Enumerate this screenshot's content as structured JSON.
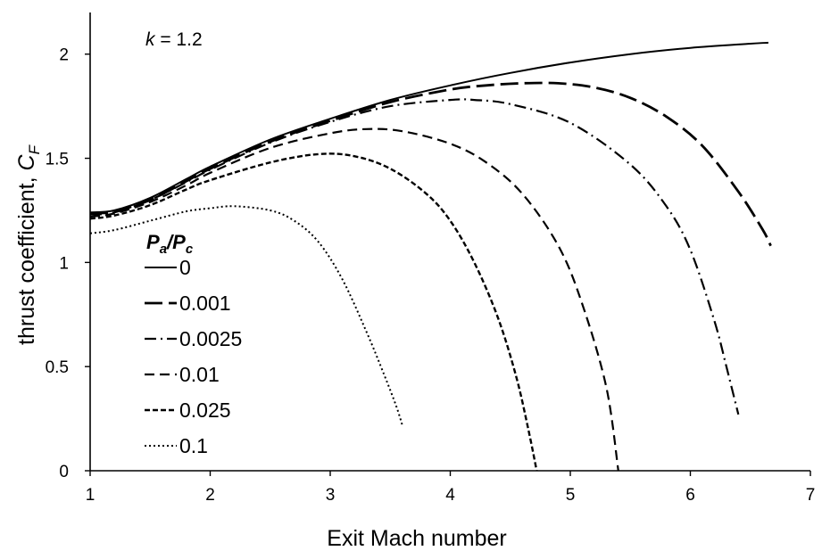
{
  "chart_data": {
    "type": "line",
    "title": "",
    "xlabel": "Exit Mach number",
    "ylabel_main": "thrust coefficient, ",
    "ylabel_symbol": "C",
    "ylabel_subscript": "F",
    "xlim": [
      1,
      7
    ],
    "ylim": [
      0,
      2.2
    ],
    "x_ticks": [
      1,
      2,
      3,
      4,
      5,
      6,
      7
    ],
    "y_ticks": [
      0,
      0.5,
      1,
      1.5,
      2
    ],
    "x_tick_labels": [
      "1",
      "2",
      "3",
      "4",
      "5",
      "6",
      "7"
    ],
    "y_tick_labels": [
      "0",
      "0.5",
      "1",
      "1.5",
      "2"
    ],
    "grid": false,
    "annotation": {
      "var": "k",
      "rest": " = 1.2"
    },
    "legend": {
      "title_p": "P",
      "title_sub_a": "a",
      "title_slash": "/",
      "title_sub_c": "c",
      "placement": "left-center"
    },
    "color": "#000000",
    "series": [
      {
        "name": "0",
        "style": "solid-thin",
        "x": [
          1.0,
          1.2,
          1.5,
          1.8,
          2.0,
          2.5,
          3.0,
          3.5,
          4.0,
          4.5,
          5.0,
          5.5,
          6.0,
          6.5,
          6.65
        ],
        "y": [
          1.24,
          1.25,
          1.31,
          1.4,
          1.46,
          1.59,
          1.69,
          1.78,
          1.85,
          1.91,
          1.96,
          2.0,
          2.03,
          2.05,
          2.055
        ]
      },
      {
        "name": "0.001",
        "style": "long-dash",
        "x": [
          1.0,
          1.2,
          1.5,
          1.8,
          2.0,
          2.5,
          3.0,
          3.5,
          4.0,
          4.3,
          4.6,
          4.9,
          5.2,
          5.5,
          5.8,
          6.1,
          6.4,
          6.6,
          6.67
        ],
        "y": [
          1.235,
          1.245,
          1.3,
          1.39,
          1.45,
          1.58,
          1.68,
          1.77,
          1.83,
          1.85,
          1.86,
          1.86,
          1.84,
          1.79,
          1.7,
          1.56,
          1.34,
          1.16,
          1.08
        ]
      },
      {
        "name": "0.0025",
        "style": "dash-dot",
        "x": [
          1.0,
          1.2,
          1.5,
          1.8,
          2.0,
          2.5,
          3.0,
          3.5,
          4.0,
          4.2,
          4.5,
          5.0,
          5.5,
          5.8,
          6.0,
          6.2,
          6.3,
          6.4
        ],
        "y": [
          1.23,
          1.24,
          1.3,
          1.385,
          1.445,
          1.575,
          1.675,
          1.75,
          1.78,
          1.78,
          1.76,
          1.67,
          1.47,
          1.27,
          1.06,
          0.72,
          0.5,
          0.27
        ]
      },
      {
        "name": "0.01",
        "style": "medium-dash",
        "x": [
          1.0,
          1.2,
          1.5,
          1.8,
          2.0,
          2.5,
          3.0,
          3.3,
          3.6,
          4.0,
          4.3,
          4.6,
          4.9,
          5.1,
          5.3,
          5.4
        ],
        "y": [
          1.22,
          1.235,
          1.29,
          1.37,
          1.43,
          1.55,
          1.62,
          1.64,
          1.63,
          1.57,
          1.48,
          1.33,
          1.08,
          0.8,
          0.4,
          0.0
        ]
      },
      {
        "name": "0.025",
        "style": "short-dash",
        "x": [
          1.0,
          1.2,
          1.5,
          1.8,
          2.0,
          2.5,
          2.9,
          3.2,
          3.5,
          3.8,
          4.0,
          4.2,
          4.4,
          4.55,
          4.65,
          4.72
        ],
        "y": [
          1.21,
          1.225,
          1.275,
          1.35,
          1.395,
          1.48,
          1.52,
          1.51,
          1.45,
          1.33,
          1.2,
          1.0,
          0.73,
          0.45,
          0.2,
          0.0
        ]
      },
      {
        "name": "0.1",
        "style": "dotted",
        "x": [
          1.0,
          1.2,
          1.5,
          1.8,
          2.0,
          2.2,
          2.5,
          2.7,
          2.9,
          3.1,
          3.3,
          3.45,
          3.55,
          3.6
        ],
        "y": [
          1.14,
          1.155,
          1.2,
          1.245,
          1.26,
          1.27,
          1.25,
          1.2,
          1.1,
          0.92,
          0.67,
          0.46,
          0.31,
          0.22
        ]
      }
    ]
  }
}
